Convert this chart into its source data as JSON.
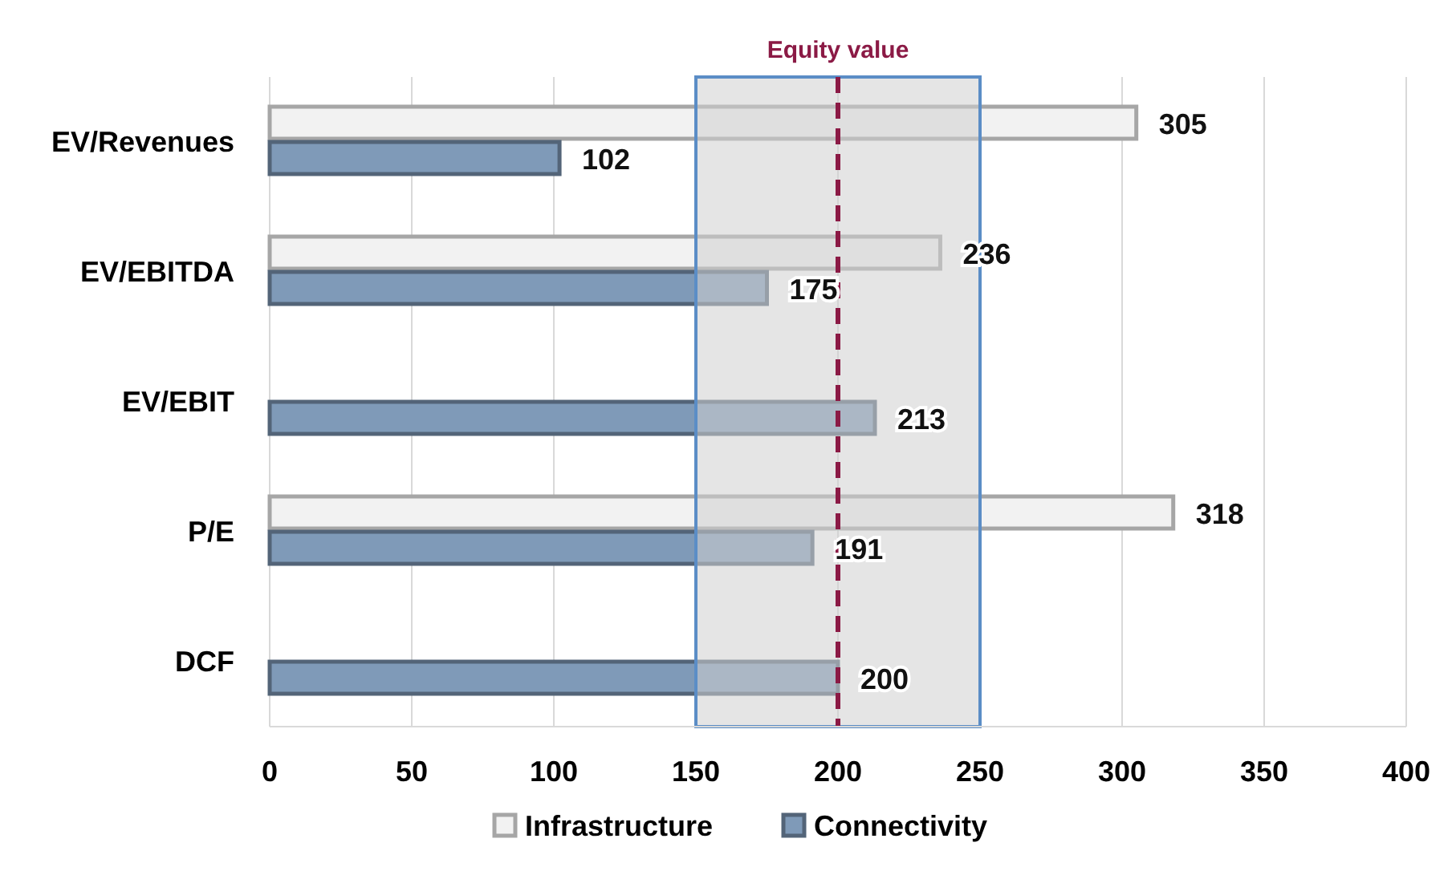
{
  "chart_data": {
    "type": "bar",
    "orientation": "horizontal",
    "categories": [
      "EV/Revenues",
      "EV/EBITDA",
      "EV/EBIT",
      "P/E",
      "DCF"
    ],
    "series": [
      {
        "name": "Infrastructure",
        "color": "#f2f2f2",
        "values": [
          305,
          236,
          null,
          318,
          null
        ]
      },
      {
        "name": "Connectivity",
        "color": "#7f9ab8",
        "values": [
          102,
          175,
          213,
          191,
          200
        ]
      }
    ],
    "xlim": [
      0,
      400
    ],
    "xticks": [
      0,
      50,
      100,
      150,
      200,
      250,
      300,
      350,
      400
    ],
    "grid": "x",
    "legend": "bottom",
    "data_labels": true,
    "ref_lines": [
      {
        "axis": "x",
        "value": 200,
        "label": "Equity value",
        "color": "#8b1a45",
        "line_style": "dashed"
      }
    ],
    "bands": [
      {
        "axis": "x",
        "from": 150,
        "to": 250,
        "color": "#d0d0d0"
      }
    ]
  }
}
